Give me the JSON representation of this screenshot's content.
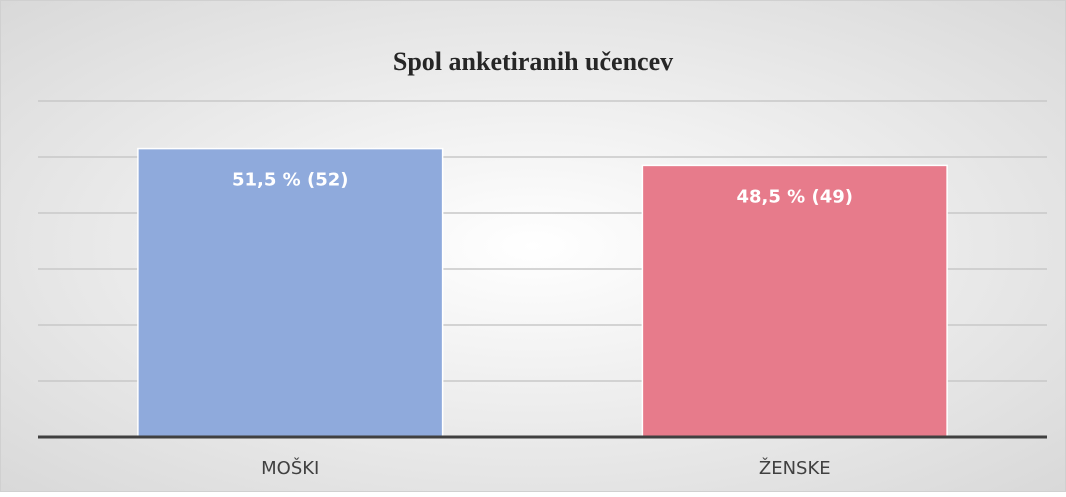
{
  "chart_data": {
    "type": "bar",
    "title": "Spol anketiranih učencev",
    "categories": [
      "MOŠKI",
      "ŽENSKE"
    ],
    "values": [
      51.5,
      48.5
    ],
    "value_labels": [
      "51,5 % (52)",
      "48,5 % (49)"
    ],
    "colors": [
      "#8faadc",
      "#e77b8b"
    ],
    "ylim": [
      0,
      60
    ],
    "yticks": [
      0,
      10,
      20,
      30,
      40,
      50,
      60
    ],
    "grid": true
  }
}
